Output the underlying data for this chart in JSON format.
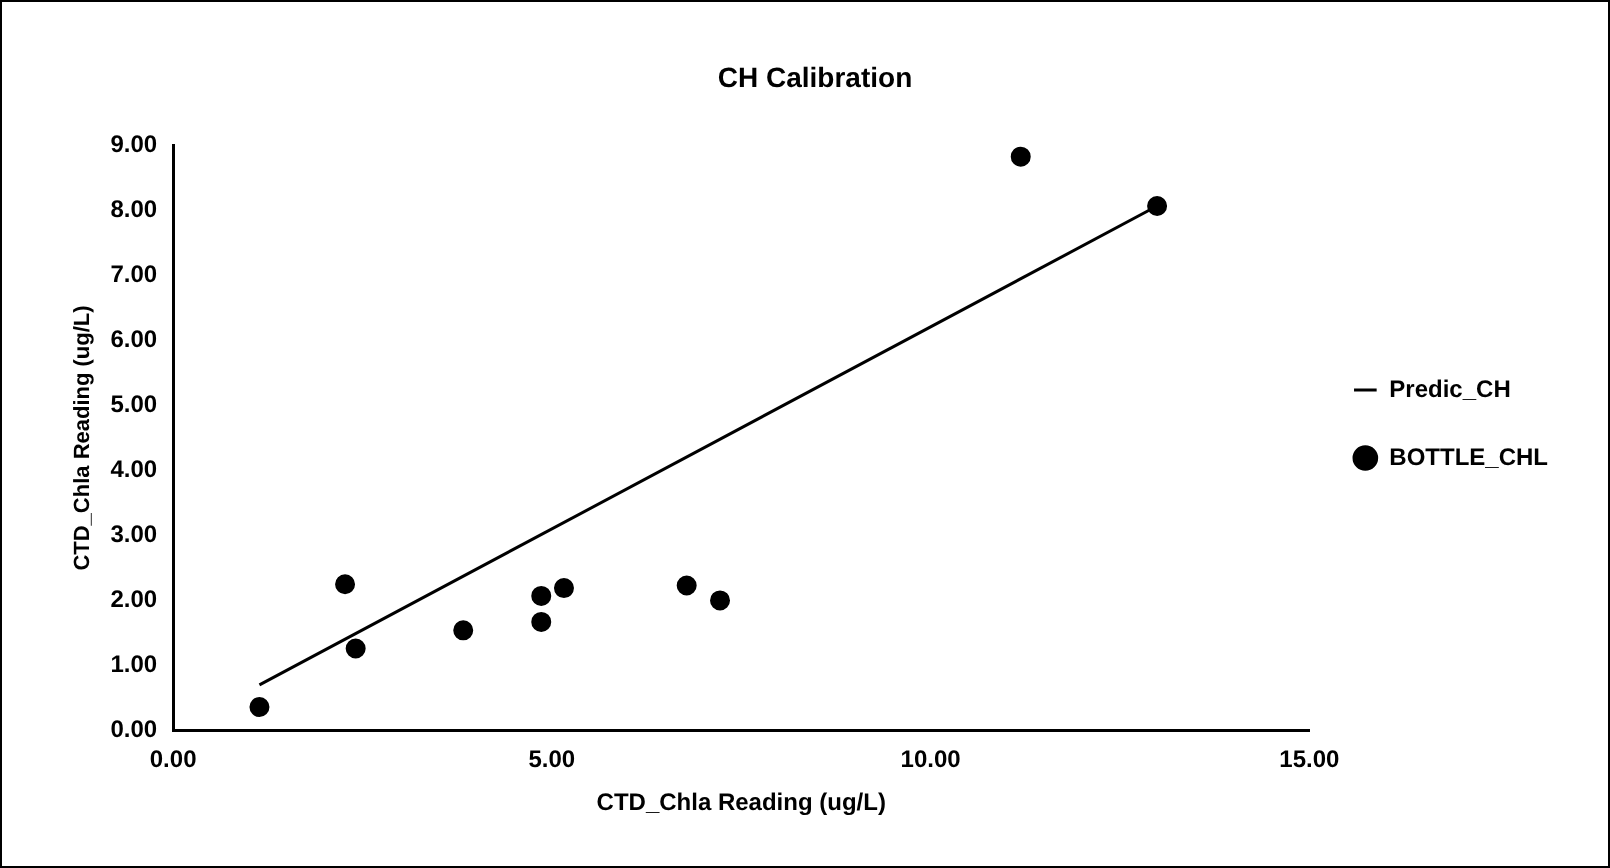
{
  "chart_data": {
    "type": "scatter",
    "title": "CH Calibration",
    "xlabel": "CTD_Chla Reading (ug/L)",
    "ylabel": "CTD_Chla Reading (ug/L)",
    "xlim": [
      0,
      15
    ],
    "xticks": [
      {
        "value": 0,
        "label": "0.00"
      },
      {
        "value": 5,
        "label": "5.00"
      },
      {
        "value": 10,
        "label": "10.00"
      },
      {
        "value": 15,
        "label": "15.00"
      }
    ],
    "ylim": [
      0,
      9
    ],
    "yticks": [
      {
        "value": 0,
        "label": "0.00"
      },
      {
        "value": 1,
        "label": "1.00"
      },
      {
        "value": 2,
        "label": "2.00"
      },
      {
        "value": 3,
        "label": "3.00"
      },
      {
        "value": 4,
        "label": "4.00"
      },
      {
        "value": 5,
        "label": "5.00"
      },
      {
        "value": 6,
        "label": "6.00"
      },
      {
        "value": 7,
        "label": "7.00"
      },
      {
        "value": 8,
        "label": "8.00"
      },
      {
        "value": 9,
        "label": "9.00"
      }
    ],
    "legend": "right",
    "grid": false,
    "series": [
      {
        "name": "Predic_CH",
        "type": "line",
        "color": "#000000",
        "marker": "none",
        "x": [
          1.14,
          12.99
        ],
        "values": [
          0.7,
          8.07
        ]
      },
      {
        "name": "BOTTLE_CHL",
        "type": "scatter",
        "color": "#000000",
        "marker": "circle",
        "x": [
          1.14,
          2.27,
          2.41,
          3.83,
          4.86,
          4.86,
          5.16,
          6.78,
          7.22,
          11.19,
          12.99
        ],
        "values": [
          0.36,
          2.25,
          1.26,
          1.54,
          2.07,
          1.67,
          2.19,
          2.23,
          2.0,
          8.83,
          8.07
        ]
      }
    ]
  }
}
